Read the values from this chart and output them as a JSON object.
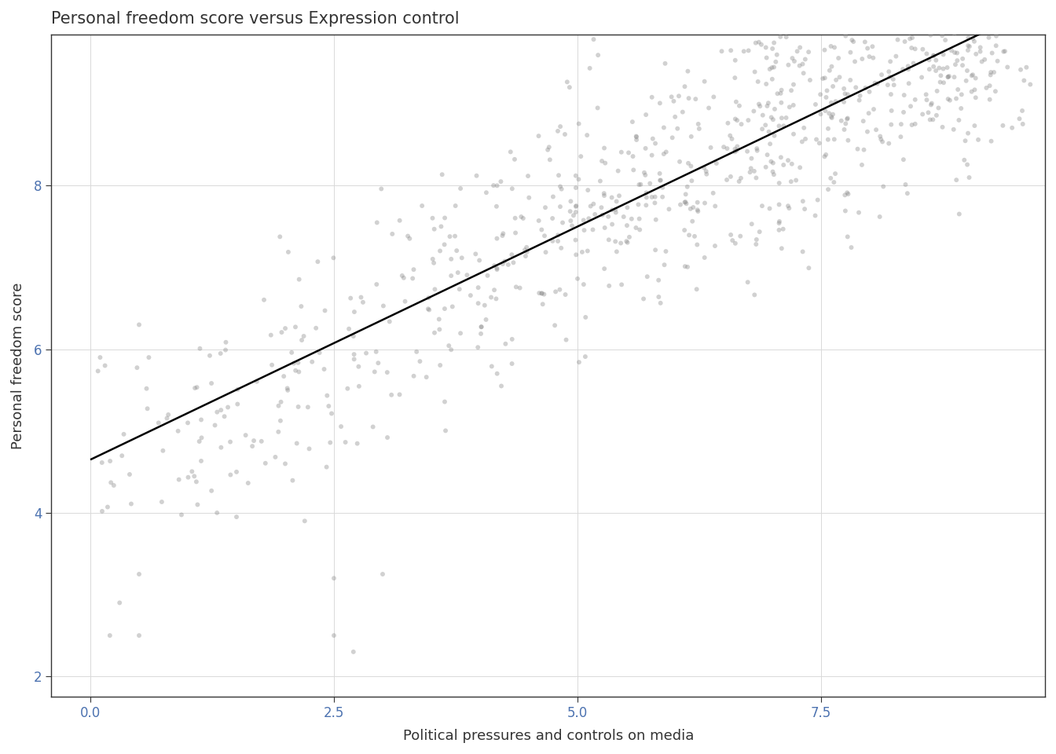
{
  "title": "Personal freedom score versus Expression control",
  "xlabel": "Political pressures and controls on media",
  "ylabel": "Personal freedom score",
  "xlim": [
    -0.4,
    9.8
  ],
  "ylim": [
    1.75,
    9.85
  ],
  "xticks": [
    0.0,
    2.5,
    5.0,
    7.5
  ],
  "yticks": [
    2,
    4,
    6,
    8
  ],
  "bg_color": "#FFFFFF",
  "grid_color": "#D9D9D9",
  "point_color": "#8C8C8C",
  "point_alpha": 0.4,
  "point_size": 18,
  "line_color": "#000000",
  "line_width": 1.8,
  "title_fontsize": 15,
  "axis_label_fontsize": 13,
  "tick_label_fontsize": 12,
  "tick_label_color": "#4C72B0",
  "seed": 42,
  "slope": 0.57,
  "intercept": 4.65,
  "noise_std": 0.75,
  "n_main": 400
}
